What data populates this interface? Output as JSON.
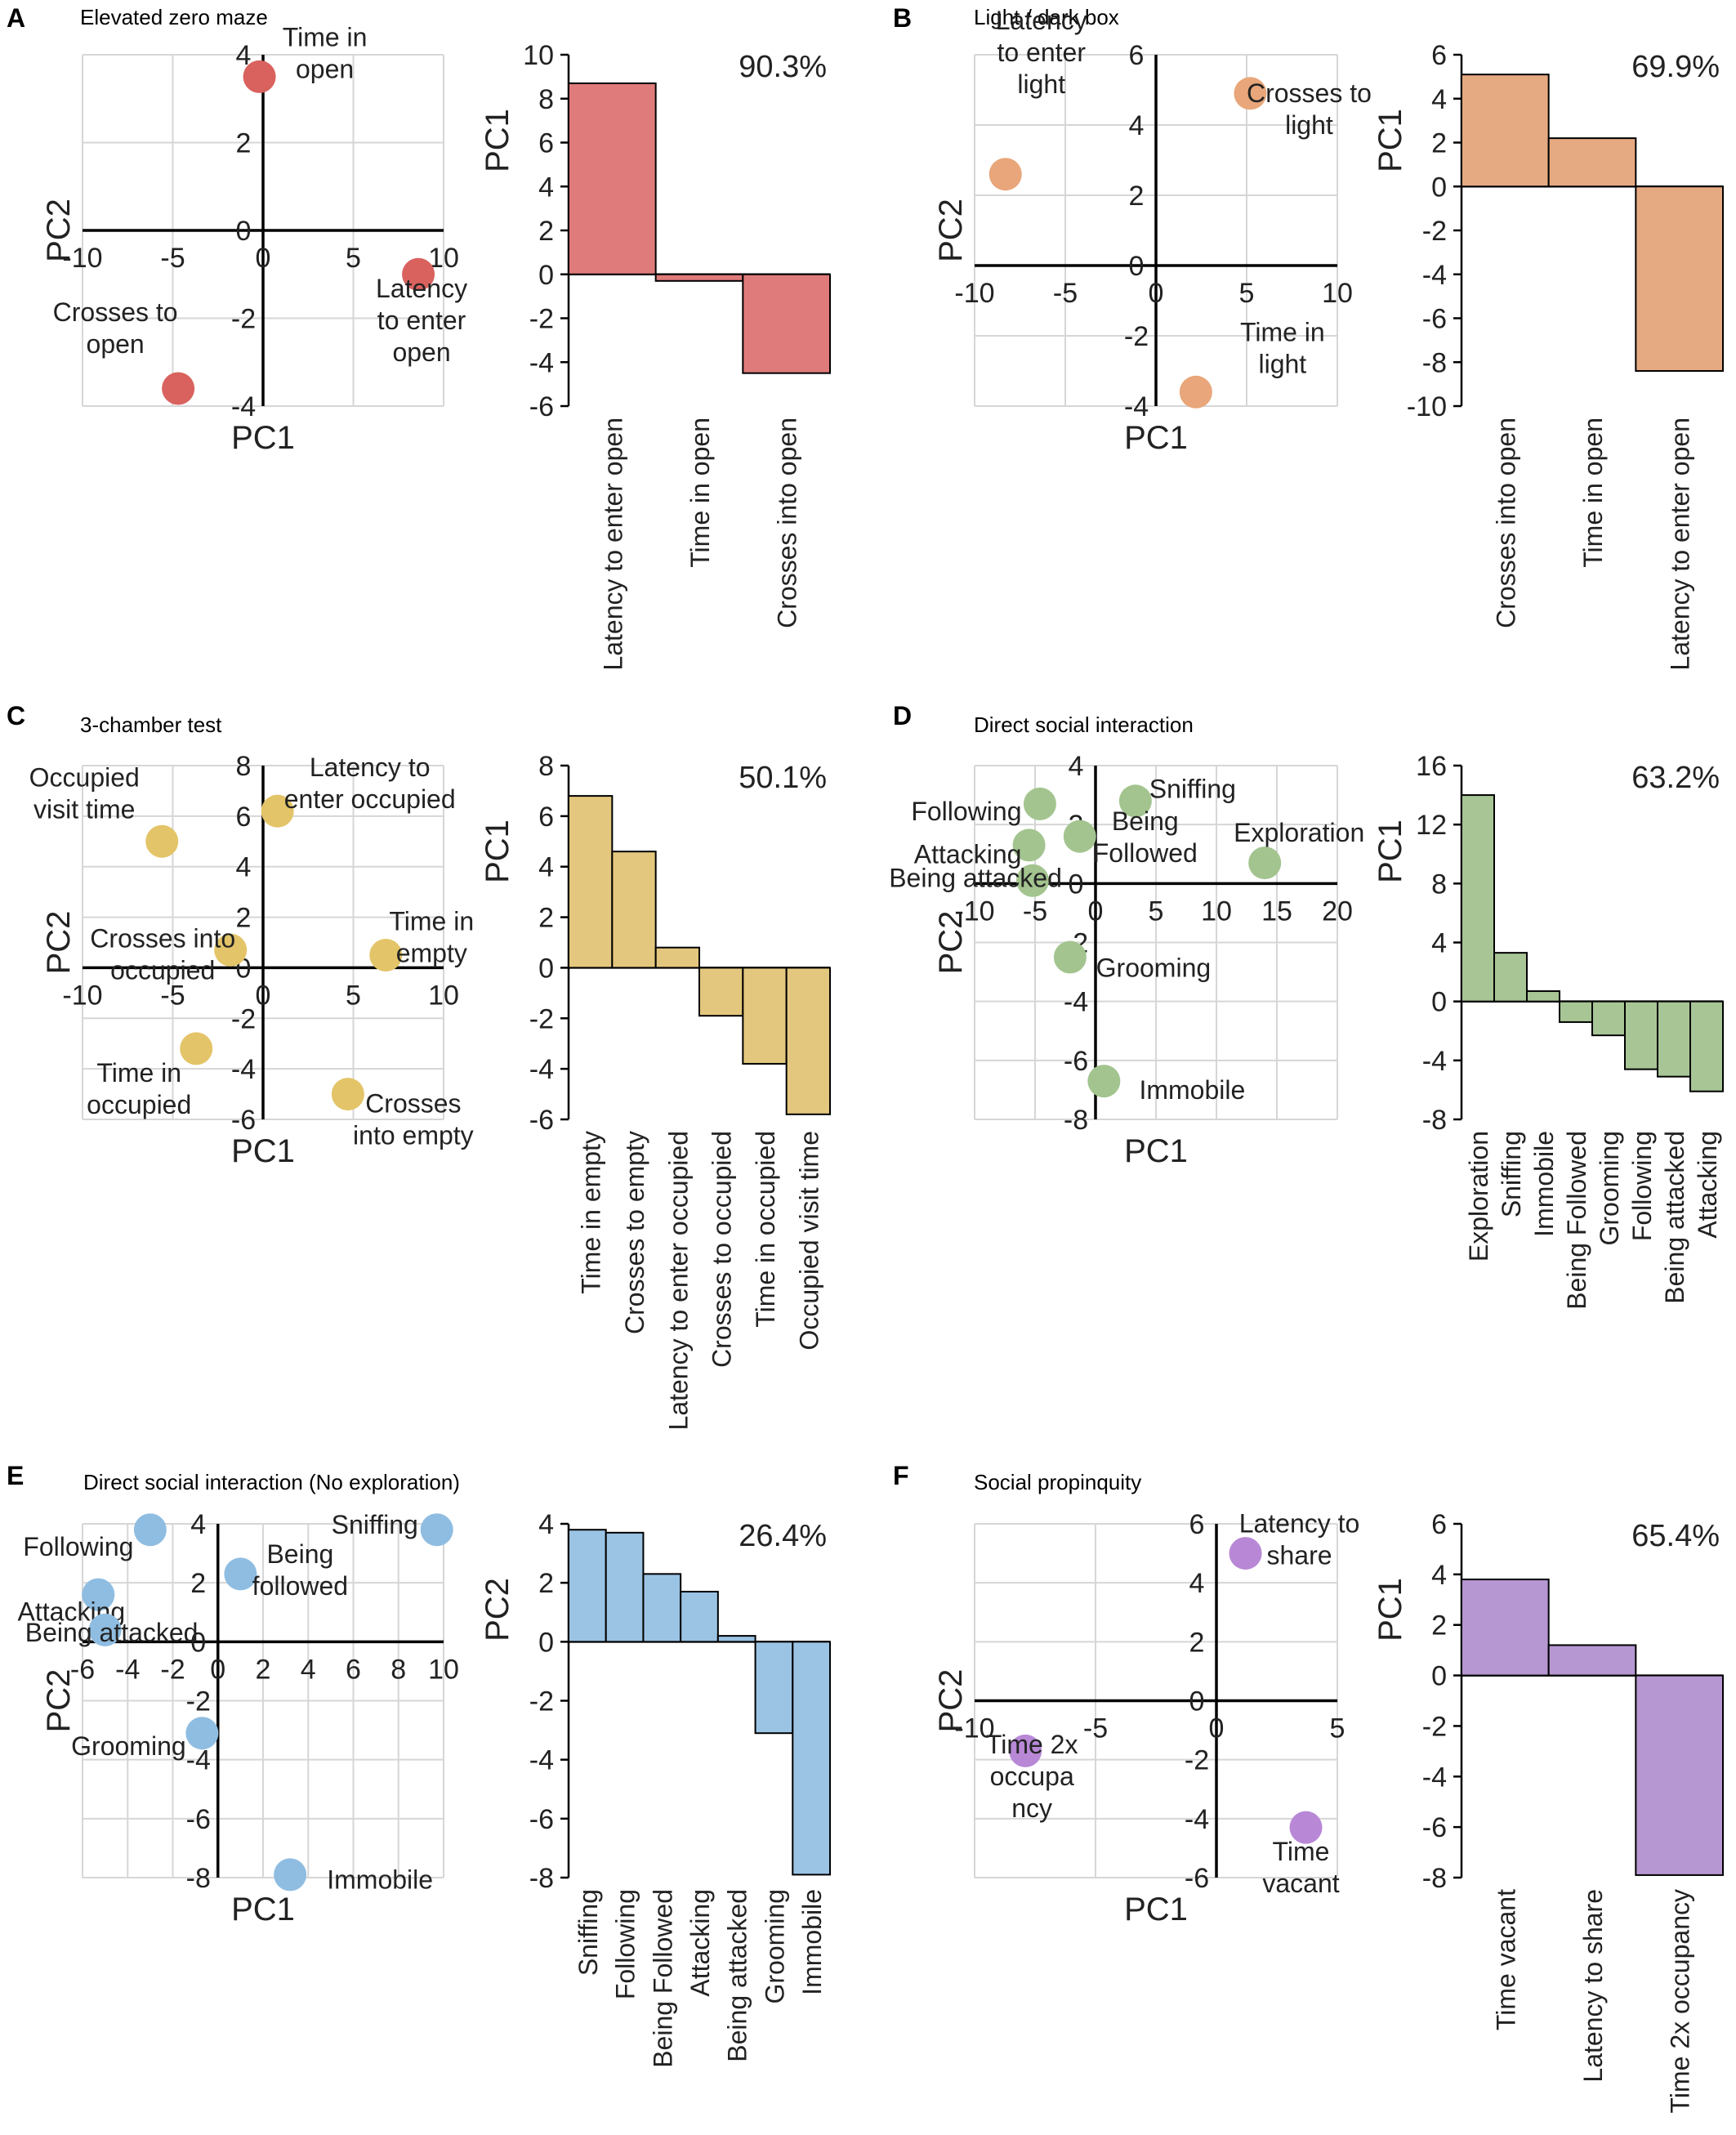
{
  "figure": {
    "panels": [
      {
        "label": "A",
        "title": "Elevated zero maze"
      },
      {
        "label": "B",
        "title": "Light / dark box"
      },
      {
        "label": "C",
        "title": "3-chamber test"
      },
      {
        "label": "D",
        "title": "Direct social interaction"
      },
      {
        "label": "E",
        "title": "Direct social interaction (No exploration)"
      },
      {
        "label": "F",
        "title": "Social propinquity"
      }
    ]
  },
  "chart_data": [
    {
      "panel": "A",
      "type": "scatter",
      "title": "Elevated zero maze",
      "color": "#d9625e",
      "xlabel": "PC1",
      "ylabel": "PC2",
      "xlim": [
        -10,
        10
      ],
      "ylim": [
        -4,
        4
      ],
      "xticks": [
        -10,
        -5,
        0,
        5,
        10
      ],
      "yticks": [
        -4,
        -2,
        0,
        2,
        4
      ],
      "points": [
        {
          "x": -0.2,
          "y": 3.5,
          "label": "Time in open"
        },
        {
          "x": 8.6,
          "y": -1.0,
          "label": "Latency to enter open"
        },
        {
          "x": -4.7,
          "y": -3.6,
          "label": "Crosses to open"
        }
      ]
    },
    {
      "panel": "A",
      "type": "bar",
      "color": "#e07b7b",
      "ylabel": "PC1",
      "ylim": [
        -6,
        10
      ],
      "yticks": [
        -6,
        -4,
        -2,
        0,
        2,
        4,
        6,
        8,
        10
      ],
      "annotation": "90.3%",
      "categories": [
        "Latency to enter open",
        "Time in open",
        "Crosses into open"
      ],
      "values": [
        8.7,
        -0.3,
        -4.5
      ]
    },
    {
      "panel": "B",
      "type": "scatter",
      "title": "Light / dark box",
      "color": "#e8a67a",
      "xlabel": "PC1",
      "ylabel": "PC2",
      "xlim": [
        -10,
        10
      ],
      "ylim": [
        -4,
        6
      ],
      "xticks": [
        -10,
        -5,
        0,
        5,
        10
      ],
      "yticks": [
        -4,
        -2,
        0,
        2,
        4,
        6
      ],
      "points": [
        {
          "x": -8.3,
          "y": 2.6,
          "label": "Latency to enter light"
        },
        {
          "x": 5.2,
          "y": 4.9,
          "label": "Crosses to light"
        },
        {
          "x": 2.2,
          "y": -3.6,
          "label": "Time in light"
        }
      ]
    },
    {
      "panel": "B",
      "type": "bar",
      "color": "#e6aa82",
      "ylabel": "PC1",
      "ylim": [
        -10,
        6
      ],
      "yticks": [
        -10,
        -8,
        -6,
        -4,
        -2,
        0,
        2,
        4,
        6
      ],
      "annotation": "69.9%",
      "categories": [
        "Crosses into open",
        "Time in open",
        "Latency to enter open"
      ],
      "values": [
        5.1,
        2.2,
        -8.4
      ]
    },
    {
      "panel": "C",
      "type": "scatter",
      "title": "3-chamber test",
      "color": "#e3c468",
      "xlabel": "PC1",
      "ylabel": "PC2",
      "xlim": [
        -10,
        10
      ],
      "ylim": [
        -6,
        8
      ],
      "xticks": [
        -10,
        -5,
        0,
        5,
        10
      ],
      "yticks": [
        -6,
        -4,
        -2,
        0,
        2,
        4,
        6,
        8
      ],
      "points": [
        {
          "x": -5.6,
          "y": 5.0,
          "label": "Occupied visit time"
        },
        {
          "x": 0.8,
          "y": 6.2,
          "label": "Latency to enter occupied"
        },
        {
          "x": -1.8,
          "y": 0.7,
          "label": "Crosses into occupied"
        },
        {
          "x": 6.8,
          "y": 0.5,
          "label": "Time in empty"
        },
        {
          "x": -3.7,
          "y": -3.2,
          "label": "Time in occupied"
        },
        {
          "x": 4.7,
          "y": -5.0,
          "label": "Crosses into empty"
        }
      ]
    },
    {
      "panel": "C",
      "type": "bar",
      "color": "#e3c77e",
      "ylabel": "PC1",
      "ylim": [
        -6,
        8
      ],
      "yticks": [
        -6,
        -4,
        -2,
        0,
        2,
        4,
        6,
        8
      ],
      "annotation": "50.1%",
      "categories": [
        "Time in empty",
        "Crosses to empty",
        "Latency to enter occupied",
        "Crosses to occupied",
        "Time in occupied",
        "Occupied visit time"
      ],
      "values": [
        6.8,
        4.6,
        0.8,
        -1.9,
        -3.8,
        -5.8
      ]
    },
    {
      "panel": "D",
      "type": "scatter",
      "title": "Direct social interaction",
      "color": "#a3c48f",
      "xlabel": "PC1",
      "ylabel": "PC2",
      "xlim": [
        -10,
        20
      ],
      "ylim": [
        -8,
        4
      ],
      "xticks": [
        -10,
        -5,
        0,
        5,
        10,
        15,
        20
      ],
      "yticks": [
        -8,
        -6,
        -4,
        -2,
        0,
        2,
        4
      ],
      "points": [
        {
          "x": -4.6,
          "y": 2.7,
          "label": "Following"
        },
        {
          "x": -5.5,
          "y": 1.3,
          "label": "Attacking"
        },
        {
          "x": -5.2,
          "y": 0.1,
          "label": "Being attacked"
        },
        {
          "x": 3.3,
          "y": 2.8,
          "label": "Sniffing"
        },
        {
          "x": -1.3,
          "y": 1.6,
          "label": "Being Followed"
        },
        {
          "x": 14.0,
          "y": 0.7,
          "label": "Exploration"
        },
        {
          "x": -2.1,
          "y": -2.5,
          "label": "Grooming"
        },
        {
          "x": 0.7,
          "y": -6.7,
          "label": "Immobile"
        }
      ]
    },
    {
      "panel": "D",
      "type": "bar",
      "color": "#a8c596",
      "ylabel": "PC1",
      "ylim": [
        -8,
        16
      ],
      "yticks": [
        -8,
        -4,
        0,
        4,
        8,
        12,
        16
      ],
      "annotation": "63.2%",
      "categories": [
        "Exploration",
        "Sniffing",
        "Immobile",
        "Being Followed",
        "Grooming",
        "Following",
        "Being attacked",
        "Attacking"
      ],
      "values": [
        14.0,
        3.3,
        0.7,
        -1.4,
        -2.3,
        -4.6,
        -5.1,
        -6.1
      ]
    },
    {
      "panel": "E",
      "type": "scatter",
      "title": "Direct social interaction (No exploration)",
      "color": "#8fbde2",
      "xlabel": "PC1",
      "ylabel": "PC2",
      "xlim": [
        -6,
        10
      ],
      "ylim": [
        -8,
        4
      ],
      "xticks": [
        -6,
        -4,
        -2,
        0,
        2,
        4,
        6,
        8,
        10
      ],
      "yticks": [
        -8,
        -6,
        -4,
        -2,
        0,
        2,
        4
      ],
      "points": [
        {
          "x": -3.0,
          "y": 3.8,
          "label": "Following"
        },
        {
          "x": 9.7,
          "y": 3.8,
          "label": "Sniffing"
        },
        {
          "x": -5.3,
          "y": 1.6,
          "label": "Attacking"
        },
        {
          "x": -5.0,
          "y": 0.4,
          "label": "Being attacked"
        },
        {
          "x": 1.0,
          "y": 2.3,
          "label": "Being followed"
        },
        {
          "x": -0.7,
          "y": -3.1,
          "label": "Grooming"
        },
        {
          "x": 3.2,
          "y": -7.9,
          "label": "Immobile"
        }
      ]
    },
    {
      "panel": "E",
      "type": "bar",
      "color": "#9bc3e4",
      "ylabel": "PC2",
      "ylim": [
        -8,
        4
      ],
      "yticks": [
        -8,
        -6,
        -4,
        -2,
        0,
        2,
        4
      ],
      "annotation": "26.4%",
      "categories": [
        "Sniffing",
        "Following",
        "Being Followed",
        "Attacking",
        "Being attacked",
        "Grooming",
        "Immobile"
      ],
      "values": [
        3.8,
        3.7,
        2.3,
        1.7,
        0.2,
        -3.1,
        -7.9
      ]
    },
    {
      "panel": "F",
      "type": "scatter",
      "title": "Social propinquity",
      "color": "#b888d6",
      "xlabel": "PC1",
      "ylabel": "PC2",
      "xlim": [
        -10,
        5
      ],
      "ylim": [
        -6,
        6
      ],
      "xticks": [
        -10,
        -5,
        0,
        5
      ],
      "yticks": [
        -6,
        -4,
        -2,
        0,
        2,
        4,
        6
      ],
      "points": [
        {
          "x": 1.2,
          "y": 5.0,
          "label": "Latency to share"
        },
        {
          "x": -7.9,
          "y": -1.7,
          "label": "Time 2x occupancy"
        },
        {
          "x": 3.7,
          "y": -4.3,
          "label": "Time vacant"
        }
      ]
    },
    {
      "panel": "F",
      "type": "bar",
      "color": "#b697d2",
      "ylabel": "PC1",
      "ylim": [
        -8,
        6
      ],
      "yticks": [
        -8,
        -6,
        -4,
        -2,
        0,
        2,
        4,
        6
      ],
      "annotation": "65.4%",
      "categories": [
        "Time vacant",
        "Latency to share",
        "Time 2x occupancy"
      ],
      "values": [
        3.8,
        1.2,
        -7.9
      ]
    }
  ],
  "point_label_lines": {
    "A": [
      [
        "Time in",
        "open"
      ],
      [
        "Latency",
        "to enter",
        "open"
      ],
      [
        "Crosses to",
        "open"
      ]
    ],
    "B": [
      [
        "Latency",
        "to enter",
        "light"
      ],
      [
        "Crosses  to",
        "light"
      ],
      [
        "Time in",
        "light"
      ]
    ],
    "C": [
      [
        "Occupied",
        "visit time"
      ],
      [
        "Latency  to",
        "enter occupied"
      ],
      [
        "Crosses into",
        "occupied"
      ],
      [
        "Time in",
        "empty"
      ],
      [
        "Time in",
        "occupied"
      ],
      [
        "Crosses",
        "into empty"
      ]
    ],
    "D": [
      [
        "Following"
      ],
      [
        "Attacking"
      ],
      [
        "Being attacked"
      ],
      [
        "Sniffing"
      ],
      [
        "Being",
        "Followed"
      ],
      [
        "Exploration"
      ],
      [
        "Grooming"
      ],
      [
        "Immobile"
      ]
    ],
    "E": [
      [
        "Following"
      ],
      [
        "Sniffing"
      ],
      [
        "Attacking"
      ],
      [
        "Being attacked"
      ],
      [
        "Being",
        "followed"
      ],
      [
        "Grooming"
      ],
      [
        "Immobile"
      ]
    ],
    "F": [
      [
        "Latency to",
        "share"
      ],
      [
        "Time 2x",
        "occupa",
        "ncy"
      ],
      [
        "Time",
        "vacant"
      ]
    ]
  }
}
